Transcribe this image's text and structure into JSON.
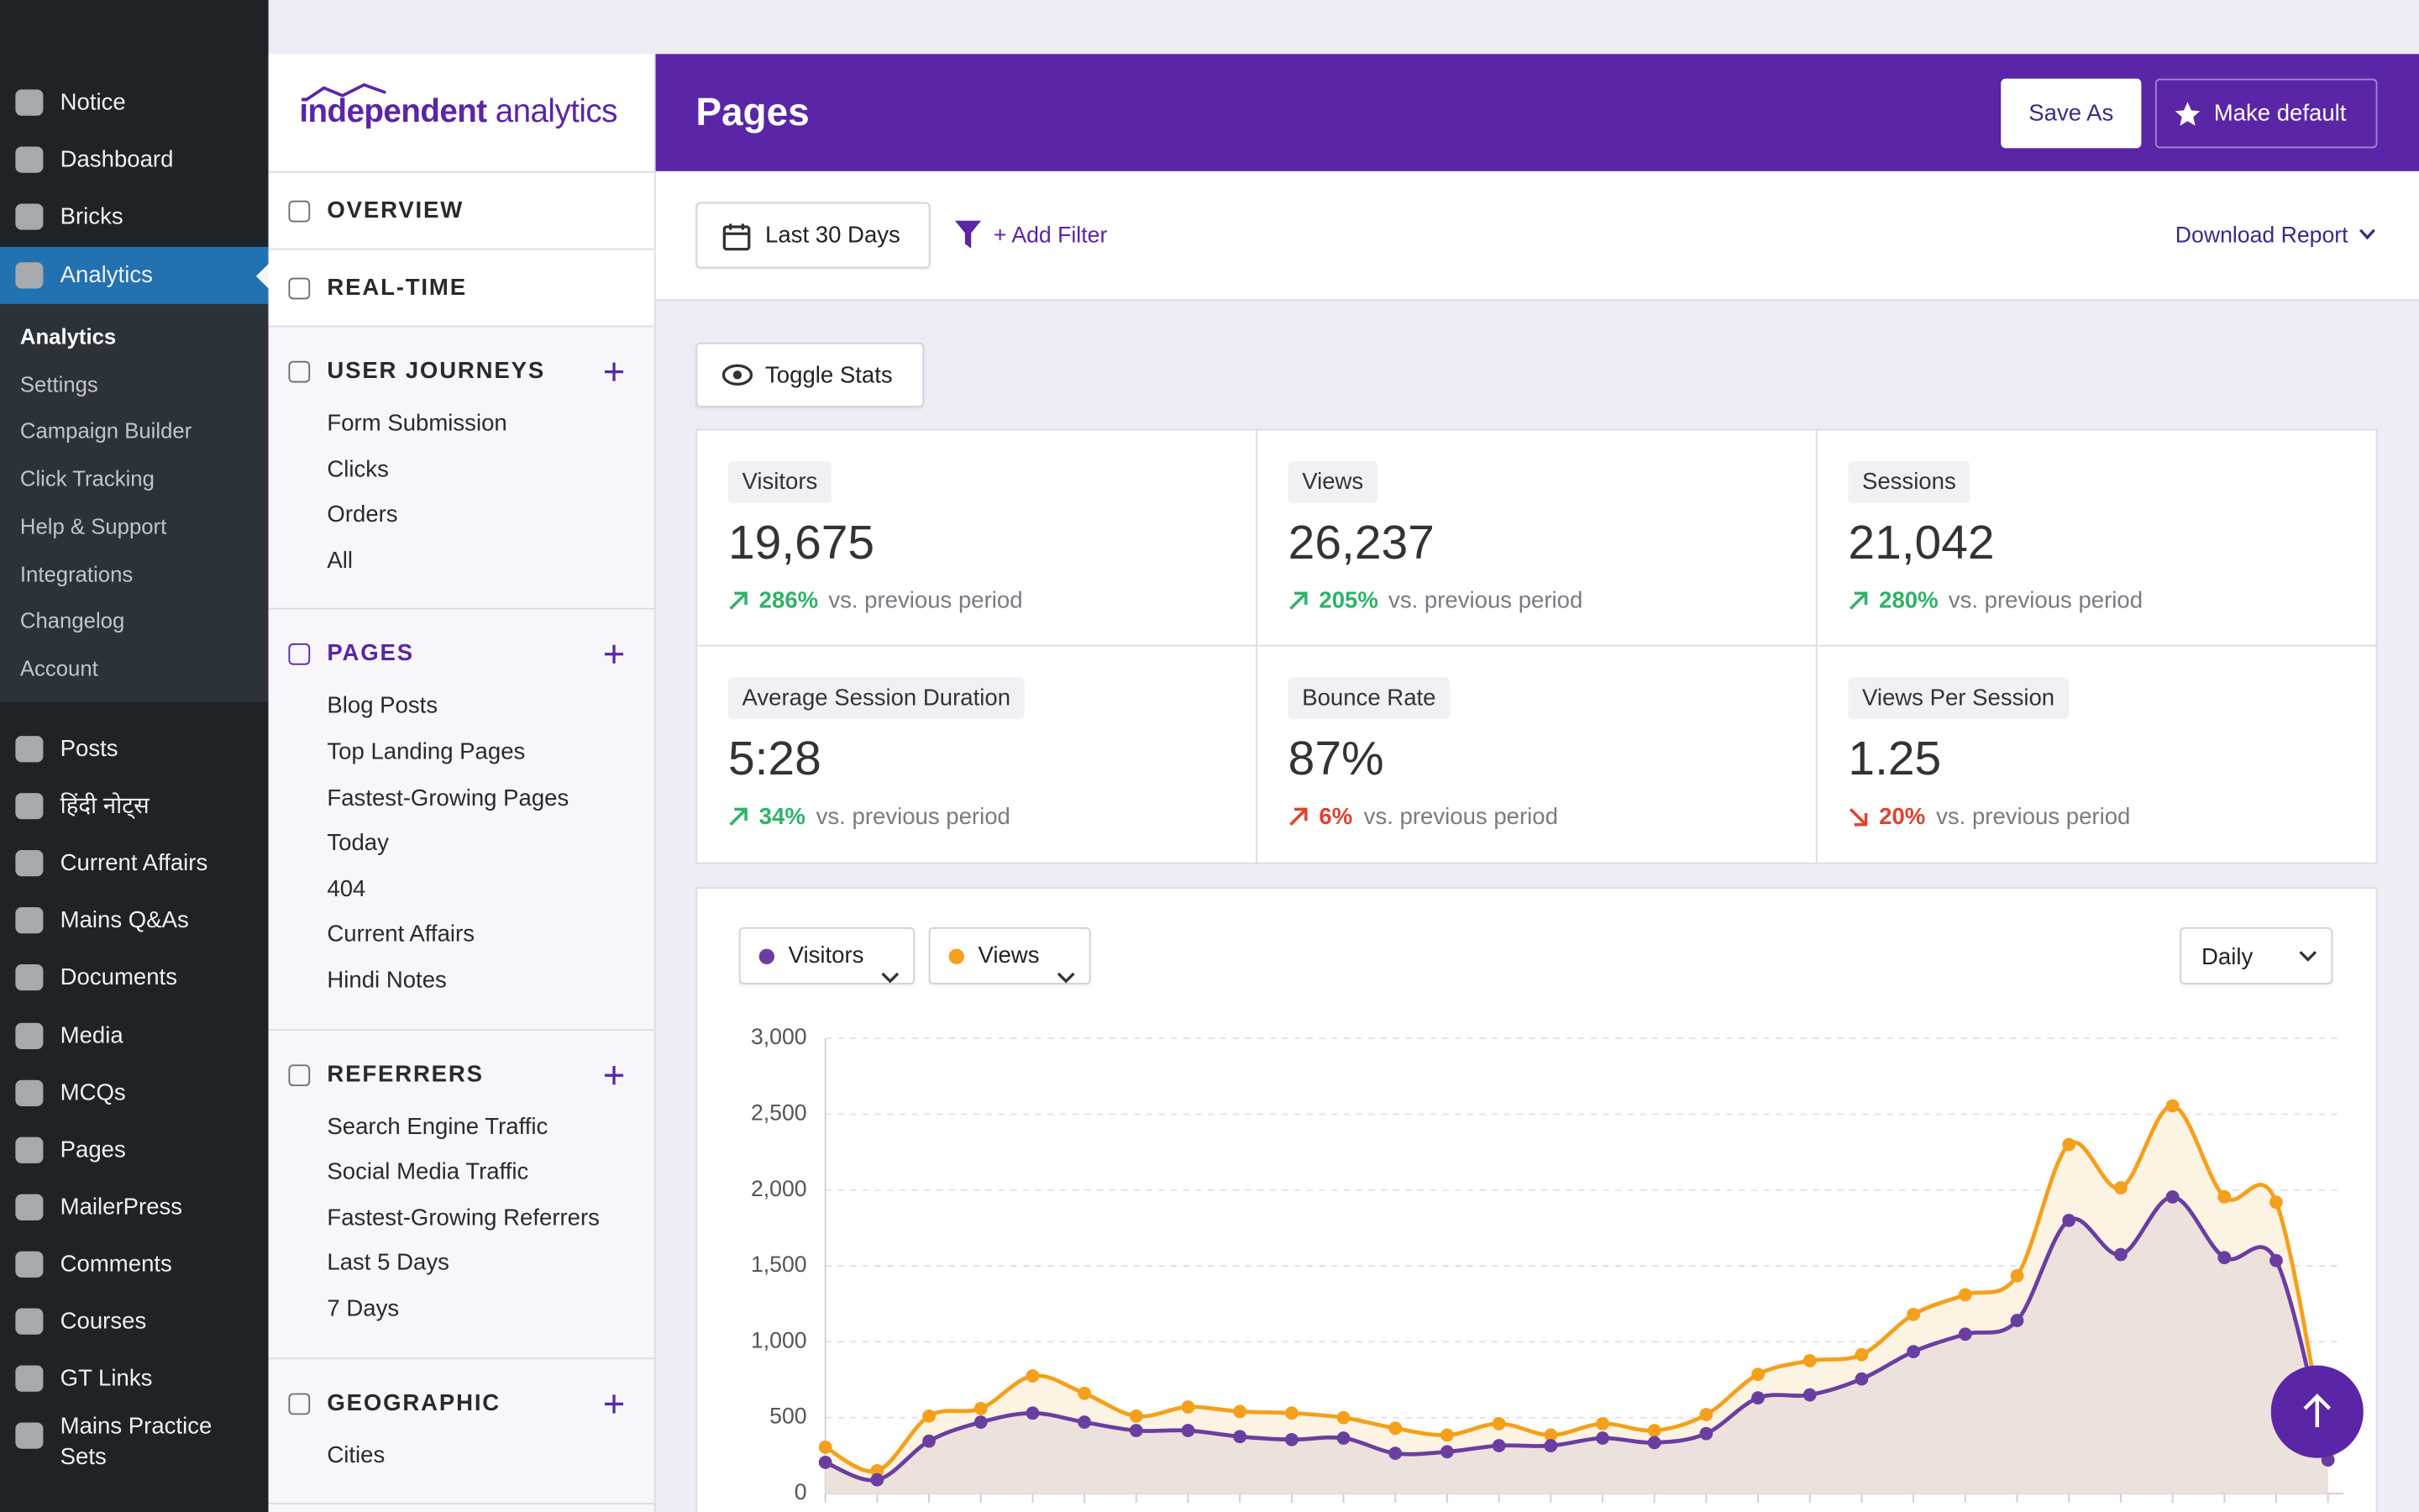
{
  "wp_menu": {
    "top": [
      "Notice",
      "Dashboard",
      "Bricks"
    ],
    "active": "Analytics",
    "submenu": [
      "Analytics",
      "Settings",
      "Campaign Builder",
      "Click Tracking",
      "Help & Support",
      "Integrations",
      "Changelog",
      "Account"
    ],
    "items": [
      "Posts",
      "हिंदी नोट्स",
      "Current Affairs",
      "Mains Q&As",
      "Documents",
      "Media",
      "MCQs",
      "Pages",
      "MailerPress",
      "Comments",
      "Courses",
      "GT Links",
      "Mains Practice Sets"
    ]
  },
  "plugin_nav": {
    "logo_bold": "independent",
    "logo_light": "analytics",
    "sections": [
      {
        "title": "OVERVIEW",
        "items": [],
        "addable": false,
        "active": false
      },
      {
        "title": "REAL-TIME",
        "items": [],
        "addable": false,
        "active": false
      },
      {
        "title": "USER JOURNEYS",
        "items": [
          "Form Submission",
          "Clicks",
          "Orders",
          "All"
        ],
        "addable": true,
        "active": false
      },
      {
        "title": "PAGES",
        "items": [
          "Blog Posts",
          "Top Landing Pages",
          "Fastest-Growing Pages",
          "Today",
          "404",
          "Current Affairs",
          "Hindi Notes"
        ],
        "addable": true,
        "active": true
      },
      {
        "title": "REFERRERS",
        "items": [
          "Search Engine Traffic",
          "Social Media Traffic",
          "Fastest-Growing Referrers",
          "Last 5 Days",
          "7 Days"
        ],
        "addable": true,
        "active": false
      },
      {
        "title": "GEOGRAPHIC",
        "items": [
          "Cities"
        ],
        "addable": true,
        "active": false
      }
    ]
  },
  "header": {
    "title": "Pages",
    "save_as": "Save As",
    "make_default": "Make default"
  },
  "toolbar": {
    "date_range": "Last 30 Days",
    "add_filter": "+ Add Filter",
    "download": "Download Report"
  },
  "toggle_stats": "Toggle Stats",
  "stats": [
    {
      "label": "Visitors",
      "value": "19,675",
      "change": "286%",
      "compare": "vs. previous period",
      "direction": "up",
      "positive": true
    },
    {
      "label": "Views",
      "value": "26,237",
      "change": "205%",
      "compare": "vs. previous period",
      "direction": "up",
      "positive": true
    },
    {
      "label": "Sessions",
      "value": "21,042",
      "change": "280%",
      "compare": "vs. previous period",
      "direction": "up",
      "positive": true
    },
    {
      "label": "Average Session Duration",
      "value": "5:28",
      "change": "34%",
      "compare": "vs. previous period",
      "direction": "up",
      "positive": true
    },
    {
      "label": "Bounce Rate",
      "value": "87%",
      "change": "6%",
      "compare": "vs. previous period",
      "direction": "up",
      "positive": false
    },
    {
      "label": "Views Per Session",
      "value": "1.25",
      "change": "20%",
      "compare": "vs. previous period",
      "direction": "down",
      "positive": false
    }
  ],
  "chart_controls": {
    "interval": "Daily"
  },
  "chart_data": {
    "type": "line",
    "categories": [
      null,
      null,
      null,
      null,
      null,
      null,
      null,
      null,
      null,
      null,
      null,
      null,
      null,
      null,
      null,
      null,
      null,
      null,
      null,
      null,
      null,
      null,
      null,
      null,
      null,
      null,
      null,
      null,
      null,
      null
    ],
    "series": [
      {
        "name": "Views",
        "color": "#f4a01c",
        "fill": "#fdf3e2",
        "values": [
          305,
          150,
          510,
          560,
          775,
          660,
          510,
          570,
          540,
          530,
          500,
          430,
          385,
          460,
          385,
          460,
          415,
          520,
          785,
          875,
          915,
          1180,
          1310,
          1435,
          2300,
          2015,
          2555,
          1955,
          1920,
          225
        ]
      },
      {
        "name": "Visitors",
        "color": "#6a3ea1",
        "fill": "#ede1dd",
        "values": [
          205,
          90,
          345,
          470,
          530,
          470,
          415,
          415,
          375,
          355,
          365,
          265,
          275,
          315,
          315,
          365,
          335,
          395,
          630,
          650,
          755,
          935,
          1050,
          1140,
          1800,
          1575,
          1955,
          1555,
          1535,
          220
        ]
      }
    ],
    "ylim": [
      0,
      3000
    ],
    "yticks": [
      0,
      500,
      {
        "value": 1000,
        "label": "1,000"
      },
      {
        "value": 1500,
        "label": "1,500"
      },
      {
        "value": 2000,
        "label": "2,000"
      },
      {
        "value": 2500,
        "label": "2,500"
      },
      {
        "value": 3000,
        "label": "3,000"
      }
    ],
    "grid": true
  }
}
